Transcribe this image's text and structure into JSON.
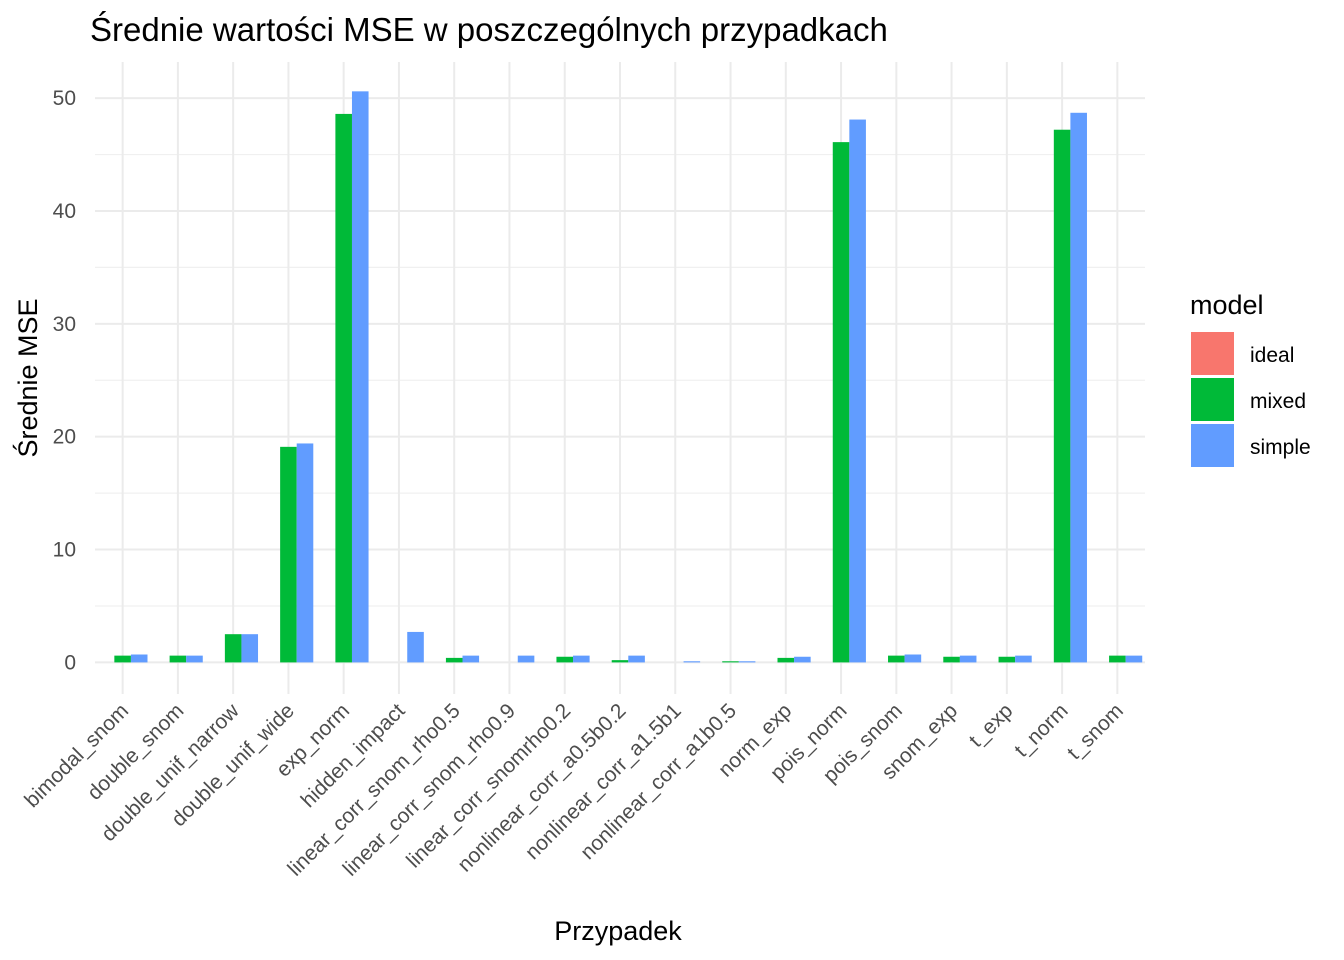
{
  "chart_data": {
    "type": "bar",
    "title": "Średnie wartości MSE w poszczególnych przypadkach",
    "xlabel": "Przypadek",
    "ylabel": "Średnie MSE",
    "ylim": [
      -2.8,
      53.2
    ],
    "yticks": [
      0,
      10,
      20,
      30,
      40,
      50
    ],
    "yticks_text": [
      "0",
      "10",
      "20",
      "30",
      "40",
      "50"
    ],
    "grid": true,
    "legend": {
      "title": "model",
      "placement": "right"
    },
    "categories": [
      "bimodal_snom",
      "double_snom",
      "double_unif_narrow",
      "double_unif_wide",
      "exp_norm",
      "hidden_impact",
      "linear_corr_snom_rho0.5",
      "linear_corr_snom_rho0.9",
      "linear_corr_snomrho0.2",
      "nonlinear_corr_a0.5b0.2",
      "nonlinear_corr_a1.5b1",
      "nonlinear_corr_a1b0.5",
      "norm_exp",
      "pois_norm",
      "pois_snom",
      "snom_exp",
      "t_exp",
      "t_norm",
      "t_snom"
    ],
    "series": [
      {
        "name": "ideal",
        "color": "#F8766D",
        "values": [
          0,
          0,
          0,
          0,
          0,
          0,
          0,
          0,
          0,
          0,
          0,
          0,
          0,
          0,
          0,
          0,
          0,
          0,
          0
        ]
      },
      {
        "name": "mixed",
        "color": "#00BA38",
        "values": [
          0.6,
          0.6,
          2.5,
          19.1,
          48.6,
          0,
          0.4,
          0,
          0.5,
          0.2,
          0,
          0.1,
          0.4,
          46.1,
          0.6,
          0.5,
          0.5,
          47.2,
          0.6
        ]
      },
      {
        "name": "simple",
        "color": "#619CFF",
        "values": [
          0.7,
          0.6,
          2.5,
          19.4,
          50.6,
          2.7,
          0.6,
          0.6,
          0.6,
          0.6,
          0.1,
          0.1,
          0.5,
          48.1,
          0.7,
          0.6,
          0.6,
          48.7,
          0.6
        ]
      }
    ]
  }
}
